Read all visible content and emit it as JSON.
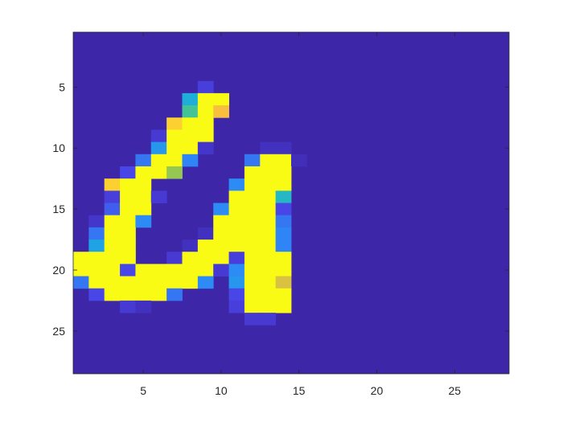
{
  "chart_data": {
    "type": "heatmap",
    "title": "",
    "xlabel": "",
    "ylabel": "",
    "rows": 28,
    "cols": 28,
    "xlim": [
      0.5,
      28.5
    ],
    "ylim": [
      0.5,
      28.5
    ],
    "y_direction": "reverse",
    "x_ticks": [
      5,
      10,
      15,
      20,
      25
    ],
    "x_tick_labels": [
      "5",
      "10",
      "15",
      "20",
      "25"
    ],
    "y_ticks": [
      5,
      10,
      15,
      20,
      25
    ],
    "y_tick_labels": [
      "5",
      "10",
      "15",
      "20",
      "25"
    ],
    "colormap": [
      "#3e26a8",
      "#4a43e6",
      "#2e87f7",
      "#1caadf",
      "#2dc3aa",
      "#a2c947",
      "#fdbe3d",
      "#f9fb15"
    ],
    "cmin": 0,
    "cmax": 1,
    "nonzero_cells": [
      [
        5,
        9,
        0.12
      ],
      [
        6,
        8,
        0.45
      ],
      [
        6,
        9,
        1.0
      ],
      [
        6,
        10,
        1.0
      ],
      [
        7,
        8,
        0.6
      ],
      [
        7,
        9,
        1.0
      ],
      [
        7,
        10,
        0.85
      ],
      [
        8,
        7,
        0.9
      ],
      [
        8,
        8,
        1.0
      ],
      [
        8,
        9,
        1.0
      ],
      [
        9,
        6,
        0.1
      ],
      [
        9,
        7,
        1.0
      ],
      [
        9,
        8,
        1.0
      ],
      [
        9,
        9,
        1.0
      ],
      [
        10,
        6,
        0.35
      ],
      [
        10,
        7,
        1.0
      ],
      [
        10,
        8,
        1.0
      ],
      [
        10,
        9,
        0.08
      ],
      [
        10,
        13,
        0.05
      ],
      [
        10,
        14,
        0.05
      ],
      [
        11,
        5,
        0.25
      ],
      [
        11,
        6,
        1.0
      ],
      [
        11,
        7,
        1.0
      ],
      [
        11,
        8,
        0.28
      ],
      [
        11,
        12,
        0.25
      ],
      [
        11,
        13,
        1.0
      ],
      [
        11,
        14,
        1.0
      ],
      [
        11,
        15,
        0.04
      ],
      [
        12,
        4,
        0.15
      ],
      [
        12,
        5,
        1.0
      ],
      [
        12,
        6,
        1.0
      ],
      [
        12,
        7,
        0.7
      ],
      [
        12,
        12,
        1.0
      ],
      [
        12,
        13,
        1.0
      ],
      [
        12,
        14,
        1.0
      ],
      [
        13,
        3,
        0.9
      ],
      [
        13,
        4,
        1.0
      ],
      [
        13,
        5,
        1.0
      ],
      [
        13,
        11,
        0.3
      ],
      [
        13,
        12,
        1.0
      ],
      [
        13,
        13,
        1.0
      ],
      [
        13,
        14,
        1.0
      ],
      [
        14,
        3,
        0.12
      ],
      [
        14,
        4,
        1.0
      ],
      [
        14,
        5,
        1.0
      ],
      [
        14,
        6,
        0.1
      ],
      [
        14,
        11,
        1.0
      ],
      [
        14,
        12,
        1.0
      ],
      [
        14,
        13,
        1.0
      ],
      [
        14,
        14,
        0.5
      ],
      [
        15,
        3,
        0.2
      ],
      [
        15,
        4,
        1.0
      ],
      [
        15,
        5,
        1.0
      ],
      [
        15,
        10,
        0.3
      ],
      [
        15,
        11,
        1.0
      ],
      [
        15,
        12,
        1.0
      ],
      [
        15,
        13,
        1.0
      ],
      [
        15,
        14,
        0.15
      ],
      [
        16,
        2,
        0.08
      ],
      [
        16,
        3,
        1.0
      ],
      [
        16,
        4,
        1.0
      ],
      [
        16,
        5,
        0.3
      ],
      [
        16,
        10,
        1.0
      ],
      [
        16,
        11,
        1.0
      ],
      [
        16,
        12,
        1.0
      ],
      [
        16,
        13,
        1.0
      ],
      [
        16,
        14,
        0.25
      ],
      [
        17,
        2,
        0.25
      ],
      [
        17,
        3,
        1.0
      ],
      [
        17,
        4,
        1.0
      ],
      [
        17,
        9,
        0.05
      ],
      [
        17,
        10,
        1.0
      ],
      [
        17,
        11,
        1.0
      ],
      [
        17,
        12,
        1.0
      ],
      [
        17,
        13,
        1.0
      ],
      [
        17,
        14,
        0.28
      ],
      [
        18,
        2,
        0.4
      ],
      [
        18,
        3,
        1.0
      ],
      [
        18,
        4,
        1.0
      ],
      [
        18,
        8,
        0.05
      ],
      [
        18,
        9,
        1.0
      ],
      [
        18,
        10,
        1.0
      ],
      [
        18,
        11,
        1.0
      ],
      [
        18,
        12,
        1.0
      ],
      [
        18,
        13,
        1.0
      ],
      [
        18,
        14,
        0.28
      ],
      [
        19,
        1,
        1.0
      ],
      [
        19,
        2,
        1.0
      ],
      [
        19,
        3,
        1.0
      ],
      [
        19,
        4,
        1.0
      ],
      [
        19,
        7,
        0.1
      ],
      [
        19,
        8,
        1.0
      ],
      [
        19,
        9,
        1.0
      ],
      [
        19,
        10,
        1.0
      ],
      [
        19,
        11,
        0.12
      ],
      [
        19,
        12,
        1.0
      ],
      [
        19,
        13,
        1.0
      ],
      [
        19,
        14,
        1.0
      ],
      [
        20,
        1,
        1.0
      ],
      [
        20,
        2,
        1.0
      ],
      [
        20,
        3,
        1.0
      ],
      [
        20,
        4,
        0.15
      ],
      [
        20,
        5,
        1.0
      ],
      [
        20,
        6,
        1.0
      ],
      [
        20,
        7,
        1.0
      ],
      [
        20,
        8,
        1.0
      ],
      [
        20,
        9,
        1.0
      ],
      [
        20,
        10,
        0.1
      ],
      [
        20,
        11,
        0.3
      ],
      [
        20,
        12,
        1.0
      ],
      [
        20,
        13,
        1.0
      ],
      [
        20,
        14,
        1.0
      ],
      [
        21,
        1,
        0.25
      ],
      [
        21,
        2,
        1.0
      ],
      [
        21,
        3,
        1.0
      ],
      [
        21,
        4,
        1.0
      ],
      [
        21,
        5,
        1.0
      ],
      [
        21,
        6,
        1.0
      ],
      [
        21,
        7,
        1.0
      ],
      [
        21,
        8,
        1.0
      ],
      [
        21,
        9,
        0.3
      ],
      [
        21,
        11,
        0.35
      ],
      [
        21,
        12,
        1.0
      ],
      [
        21,
        13,
        1.0
      ],
      [
        21,
        14,
        0.8
      ],
      [
        22,
        2,
        0.15
      ],
      [
        22,
        3,
        1.0
      ],
      [
        22,
        4,
        1.0
      ],
      [
        22,
        5,
        1.0
      ],
      [
        22,
        6,
        1.0
      ],
      [
        22,
        7,
        0.25
      ],
      [
        22,
        11,
        0.15
      ],
      [
        22,
        12,
        1.0
      ],
      [
        22,
        13,
        1.0
      ],
      [
        22,
        14,
        1.0
      ],
      [
        23,
        4,
        0.1
      ],
      [
        23,
        5,
        0.05
      ],
      [
        23,
        11,
        0.12
      ],
      [
        23,
        12,
        1.0
      ],
      [
        23,
        13,
        1.0
      ],
      [
        23,
        14,
        1.0
      ],
      [
        24,
        12,
        0.1
      ],
      [
        24,
        13,
        0.1
      ]
    ]
  }
}
